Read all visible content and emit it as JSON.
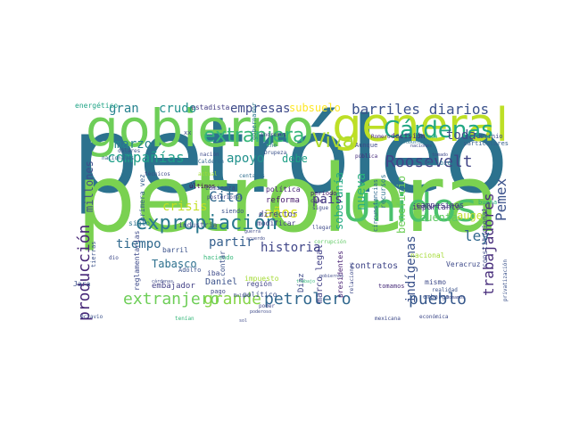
{
  "word_cloud": {
    "words": [
      {
        "text": "petróleo",
        "color": "#2c728e"
      },
      {
        "text": "petrolera",
        "color": "#7ad151"
      },
      {
        "text": "gobierno",
        "color": "#6ece58"
      },
      {
        "text": "general",
        "color": "#bddf26"
      },
      {
        "text": "Unidos",
        "color": "#4ac16d"
      },
      {
        "text": "Cárdenas",
        "color": "#22a884"
      },
      {
        "text": "expropiación",
        "color": "#2a788e"
      },
      {
        "text": "extranjera",
        "color": "#35b779"
      },
      {
        "text": "Viva",
        "color": "#addc30"
      },
      {
        "text": "extranjero",
        "color": "#6ece58"
      },
      {
        "text": "grande",
        "color": "#86d549"
      },
      {
        "text": "petrolero",
        "color": "#31688e"
      },
      {
        "text": "barriles diarios",
        "color": "#3b528b"
      },
      {
        "text": "compañías",
        "color": "#1f9e89"
      },
      {
        "text": "empresas",
        "color": "#3e4a89"
      },
      {
        "text": "Roosevelt",
        "color": "#414487"
      },
      {
        "text": "producción",
        "color": "#482878"
      },
      {
        "text": "pueblo",
        "color": "#38598c"
      },
      {
        "text": "trabajadores",
        "color": "#472d7b"
      },
      {
        "text": "gran",
        "color": "#26828e"
      },
      {
        "text": "crudo",
        "color": "#21918c"
      },
      {
        "text": "subsuelo",
        "color": "#fde725"
      },
      {
        "text": "toda",
        "color": "#3e4a89"
      },
      {
        "text": "marzo",
        "color": "#26828e"
      },
      {
        "text": "apoyo",
        "color": "#21918c"
      },
      {
        "text": "debe",
        "color": "#1fa187"
      },
      {
        "text": "millones",
        "color": "#3e4c8a"
      },
      {
        "text": "Pemex",
        "color": "#3b528b"
      },
      {
        "text": "nueva",
        "color": "#29af7f"
      },
      {
        "text": "soberanía",
        "color": "#22a884"
      },
      {
        "text": "años",
        "color": "#d8e219"
      },
      {
        "text": "país",
        "color": "#443a83"
      },
      {
        "text": "Cito",
        "color": "#31688e"
      },
      {
        "text": "crisis",
        "color": "#c2df23"
      },
      {
        "text": "historia",
        "color": "#404688"
      },
      {
        "text": "partir",
        "color": "#355f8d"
      },
      {
        "text": "tiempo",
        "color": "#30698e"
      },
      {
        "text": "Tabasco",
        "color": "#2d708e"
      },
      {
        "text": "ley",
        "color": "#31688e"
      },
      {
        "text": "auge",
        "color": "#bddf26"
      },
      {
        "text": "cuenta",
        "color": "#5ec962"
      },
      {
        "text": "indígenas",
        "color": "#3b528b"
      },
      {
        "text": "beneficio",
        "color": "#6ece58"
      },
      {
        "text": "reforma",
        "color": "#481b6d"
      },
      {
        "text": "director",
        "color": "#433d84"
      },
      {
        "text": "importante",
        "color": "#46327e"
      },
      {
        "text": "contratos",
        "color": "#404688"
      },
      {
        "text": "mismo",
        "color": "#3e4a89"
      },
      {
        "text": "embajador",
        "color": "#424086"
      },
      {
        "text": "Daniel",
        "color": "#3b528b"
      },
      {
        "text": "región",
        "color": "#414487"
      },
      {
        "text": "Díaz",
        "color": "#3e4a89"
      },
      {
        "text": "Veracruz",
        "color": "#3e4a89"
      },
      {
        "text": "marco legal",
        "color": "#424086"
      },
      {
        "text": "campesinos",
        "color": "#443983"
      },
      {
        "text": "primera vez",
        "color": "#355f8d"
      },
      {
        "text": "política",
        "color": "#482677"
      },
      {
        "text": "siglo",
        "color": "#2c728e"
      },
      {
        "text": "industria",
        "color": "#3e4a89"
      },
      {
        "text": "modificar",
        "color": "#424086"
      },
      {
        "text": "presidentes",
        "color": "#482173"
      },
      {
        "text": "constitucional",
        "color": "#3e4a89"
      },
      {
        "text": "nacional",
        "color": "#a5db36"
      },
      {
        "text": "buena",
        "color": "#2ab07f"
      },
      {
        "text": "Jara",
        "color": "#3b528b"
      },
      {
        "text": "energético",
        "color": "#20a486"
      },
      {
        "text": "estadista",
        "color": "#433d84"
      },
      {
        "text": "gobernador",
        "color": "#2a788e"
      },
      {
        "text": "decisión",
        "color": "#482475"
      },
      {
        "text": "dominio",
        "color": "#3e4a89"
      },
      {
        "text": "particulares",
        "color": "#355f8d"
      },
      {
        "text": "Romero",
        "color": "#482878"
      },
      {
        "text": "casa",
        "color": "#35b779"
      },
      {
        "text": "dicho",
        "color": "#2c728e"
      },
      {
        "text": "Drupeza",
        "color": "#3b528b"
      },
      {
        "text": "ingresos",
        "color": "#443983"
      },
      {
        "text": "pública",
        "color": "#472c7a"
      },
      {
        "text": "Aunque",
        "color": "#3e4a89"
      },
      {
        "text": "escribió",
        "color": "#2a788e"
      },
      {
        "text": "Calderón",
        "color": "#31688e"
      },
      {
        "text": "nacionales",
        "color": "#355f8d"
      },
      {
        "text": "dólares",
        "color": "#3b528b"
      },
      {
        "text": "nación",
        "color": "#3e4a89"
      },
      {
        "text": "técnicos",
        "color": "#3e4a89"
      },
      {
        "text": "actual",
        "color": "#a0da39"
      },
      {
        "text": "centavos",
        "color": "#2e6e8e"
      },
      {
        "text": "últimos",
        "color": "#440154"
      },
      {
        "text": "comienza",
        "color": "#3e4a89"
      },
      {
        "text": "posteriores",
        "color": "#404688"
      },
      {
        "text": "siendo",
        "color": "#3b528b"
      },
      {
        "text": "circunstancias",
        "color": "#31688e"
      },
      {
        "text": "recursos",
        "color": "#2c728e"
      },
      {
        "text": "período",
        "color": "#481b6d"
      },
      {
        "text": "cabo",
        "color": "#472d7b"
      },
      {
        "text": "sigue",
        "color": "#3e4a89"
      },
      {
        "text": "llegar",
        "color": "#3e4a89"
      },
      {
        "text": "corrupción",
        "color": "#5ec962"
      },
      {
        "text": "barril",
        "color": "#3b528b"
      },
      {
        "text": "haciendo",
        "color": "#35b779"
      },
      {
        "text": "reglamentarias",
        "color": "#3e4a89"
      },
      {
        "text": "Adolfo",
        "color": "#3b528b"
      },
      {
        "text": "iba",
        "color": "#3e4a89"
      },
      {
        "text": "contar",
        "color": "#3b528b"
      },
      {
        "text": "impuesto",
        "color": "#a5db36"
      },
      {
        "text": "pago",
        "color": "#3e4a89"
      },
      {
        "text": "político",
        "color": "#3b528b"
      },
      {
        "text": "poder",
        "color": "#404688"
      },
      {
        "text": "relaciones",
        "color": "#3e4a89"
      },
      {
        "text": "tomamos",
        "color": "#472c7a"
      },
      {
        "text": "realidad",
        "color": "#3b528b"
      },
      {
        "text": "embargo",
        "color": "#3b528b"
      },
      {
        "text": "privatización",
        "color": "#3b528b"
      },
      {
        "text": "económica",
        "color": "#3e4a89"
      },
      {
        "text": "Octavio",
        "color": "#3b528b"
      },
      {
        "text": "tierras",
        "color": "#3b528b"
      },
      {
        "text": "mexicana",
        "color": "#3e4a89"
      },
      {
        "text": "tenían",
        "color": "#35b779"
      },
      {
        "text": "dio",
        "color": "#3e4a89"
      },
      {
        "text": "xx",
        "color": "#3e4a89"
      },
      {
        "text": "poderoso",
        "color": "#3e4a89"
      },
      {
        "text": "trabajo",
        "color": "#35b779"
      },
      {
        "text": "robustante",
        "color": "#2a788e"
      },
      {
        "text": "tomamos",
        "color": "#3e4a89"
      },
      {
        "text": "naciones",
        "color": "#3e4a89"
      },
      {
        "text": "guerra",
        "color": "#3e4a89"
      },
      {
        "text": "acuerdo",
        "color": "#3e4a89"
      },
      {
        "text": "Bolsón",
        "color": "#3e4a89"
      },
      {
        "text": "sol",
        "color": "#3e4a89"
      },
      {
        "text": "cárdenas",
        "color": "#3e4a89"
      },
      {
        "text": "gobiernos",
        "color": "#3e4a89"
      },
      {
        "text": "tomado",
        "color": "#3e4a89"
      }
    ]
  }
}
